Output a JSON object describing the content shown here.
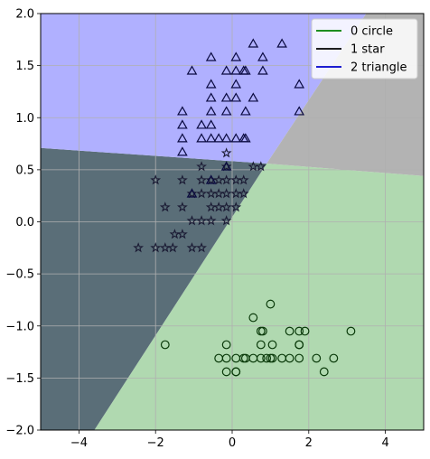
{
  "chart_data": {
    "type": "scatter",
    "xlim": [
      -5,
      5
    ],
    "ylim": [
      -2,
      2
    ],
    "x_ticks": [
      -4,
      -2,
      0,
      2,
      4
    ],
    "y_ticks": [
      -2.0,
      -1.5,
      -1.0,
      -0.5,
      0.0,
      0.5,
      1.0,
      1.5,
      2.0
    ],
    "x_tick_labels": [
      "−4",
      "−2",
      "0",
      "2",
      "4"
    ],
    "y_tick_labels": [
      "−2.0",
      "−1.5",
      "−1.0",
      "−0.5",
      "0.0",
      "0.5",
      "1.0",
      "1.5",
      "2.0"
    ],
    "grid": true,
    "legend_position": "top-right",
    "legend": [
      {
        "label": "0 circle",
        "color": "#008000"
      },
      {
        "label": "1 star",
        "color": "#000000"
      },
      {
        "label": "2 triangle",
        "color": "#0000cc"
      }
    ],
    "regions": [
      {
        "class": "0",
        "color": "#b0d9b0",
        "polygon": [
          [
            -3.6,
            -2
          ],
          [
            5,
            -2
          ],
          [
            5,
            0.44
          ],
          [
            0.9,
            0.56
          ]
        ]
      },
      {
        "class": "1",
        "color": "#5a6e78",
        "polygon": [
          [
            -5,
            -2
          ],
          [
            -3.6,
            -2
          ],
          [
            0.9,
            0.56
          ],
          [
            -5,
            0.71
          ]
        ]
      },
      {
        "class": "2",
        "color": "#b0b0ff",
        "polygon": [
          [
            -5,
            0.71
          ],
          [
            0.9,
            0.56
          ],
          [
            3.5,
            2
          ],
          [
            -5,
            2
          ]
        ]
      },
      {
        "class": "other",
        "color": "#b3b3b3",
        "polygon": [
          [
            0.9,
            0.56
          ],
          [
            5,
            0.44
          ],
          [
            5,
            2
          ],
          [
            3.5,
            2
          ]
        ]
      }
    ],
    "series": [
      {
        "name": "0 circle",
        "marker": "circle",
        "points": [
          [
            -1.75,
            -1.18
          ],
          [
            0.55,
            -0.92
          ],
          [
            1.0,
            -0.79
          ],
          [
            0.8,
            -1.05
          ],
          [
            1.5,
            -1.05
          ],
          [
            1.75,
            -1.05
          ],
          [
            1.9,
            -1.05
          ],
          [
            3.1,
            -1.05
          ],
          [
            0.75,
            -1.05
          ],
          [
            -0.15,
            -1.18
          ],
          [
            0.75,
            -1.18
          ],
          [
            1.05,
            -1.18
          ],
          [
            1.75,
            -1.18
          ],
          [
            1.75,
            -1.18
          ],
          [
            -0.35,
            -1.31
          ],
          [
            -0.15,
            -1.31
          ],
          [
            0.1,
            -1.31
          ],
          [
            0.3,
            -1.31
          ],
          [
            0.35,
            -1.31
          ],
          [
            0.55,
            -1.31
          ],
          [
            0.75,
            -1.31
          ],
          [
            0.9,
            -1.31
          ],
          [
            1.0,
            -1.31
          ],
          [
            1.05,
            -1.31
          ],
          [
            1.3,
            -1.31
          ],
          [
            1.5,
            -1.31
          ],
          [
            1.75,
            -1.31
          ],
          [
            2.2,
            -1.31
          ],
          [
            2.65,
            -1.31
          ],
          [
            -0.15,
            -1.44
          ],
          [
            0.1,
            -1.44
          ],
          [
            0.1,
            -1.44
          ],
          [
            2.4,
            -1.44
          ]
        ]
      },
      {
        "name": "1 star",
        "marker": "star",
        "points": [
          [
            -0.8,
            0.53
          ],
          [
            -0.15,
            0.53
          ],
          [
            0.55,
            0.53
          ],
          [
            0.75,
            0.53
          ],
          [
            -2.0,
            0.4
          ],
          [
            -1.3,
            0.4
          ],
          [
            -0.8,
            0.4
          ],
          [
            -0.55,
            0.4
          ],
          [
            -0.35,
            0.4
          ],
          [
            -0.15,
            0.4
          ],
          [
            0.1,
            0.4
          ],
          [
            0.3,
            0.4
          ],
          [
            -1.05,
            0.27
          ],
          [
            -0.8,
            0.27
          ],
          [
            -0.55,
            0.27
          ],
          [
            -0.35,
            0.27
          ],
          [
            -0.15,
            0.27
          ],
          [
            0.1,
            0.27
          ],
          [
            0.3,
            0.27
          ],
          [
            -1.75,
            0.14
          ],
          [
            -1.3,
            0.14
          ],
          [
            -0.55,
            0.14
          ],
          [
            -0.35,
            0.14
          ],
          [
            -0.15,
            0.14
          ],
          [
            0.1,
            0.14
          ],
          [
            -1.05,
            0.01
          ],
          [
            -0.8,
            0.01
          ],
          [
            -0.55,
            0.01
          ],
          [
            -0.15,
            0.01
          ],
          [
            -1.5,
            -0.12
          ],
          [
            -1.3,
            -0.12
          ],
          [
            -2.45,
            -0.25
          ],
          [
            -2.0,
            -0.25
          ],
          [
            -1.75,
            -0.25
          ],
          [
            -1.55,
            -0.25
          ],
          [
            -1.05,
            -0.25
          ],
          [
            -0.8,
            -0.25
          ],
          [
            -0.15,
            0.66
          ]
        ]
      },
      {
        "name": "2 triangle",
        "marker": "triangle",
        "points": [
          [
            0.55,
            1.71
          ],
          [
            1.3,
            1.71
          ],
          [
            -0.55,
            1.58
          ],
          [
            0.1,
            1.58
          ],
          [
            0.8,
            1.58
          ],
          [
            -1.05,
            1.45
          ],
          [
            -0.15,
            1.45
          ],
          [
            0.1,
            1.45
          ],
          [
            0.3,
            1.45
          ],
          [
            0.35,
            1.45
          ],
          [
            0.8,
            1.45
          ],
          [
            -0.55,
            1.32
          ],
          [
            0.1,
            1.32
          ],
          [
            1.75,
            1.32
          ],
          [
            -0.55,
            1.19
          ],
          [
            -0.15,
            1.19
          ],
          [
            0.1,
            1.19
          ],
          [
            0.55,
            1.19
          ],
          [
            -1.3,
            1.06
          ],
          [
            -0.55,
            1.06
          ],
          [
            -0.15,
            1.06
          ],
          [
            0.35,
            1.06
          ],
          [
            1.75,
            1.06
          ],
          [
            -1.3,
            0.93
          ],
          [
            -0.8,
            0.93
          ],
          [
            -0.55,
            0.93
          ],
          [
            -1.3,
            0.8
          ],
          [
            -0.8,
            0.8
          ],
          [
            -0.55,
            0.8
          ],
          [
            -0.35,
            0.8
          ],
          [
            -0.15,
            0.8
          ],
          [
            0.1,
            0.8
          ],
          [
            0.3,
            0.8
          ],
          [
            0.35,
            0.8
          ],
          [
            -1.3,
            0.67
          ],
          [
            -0.55,
            0.4
          ],
          [
            -1.05,
            0.27
          ],
          [
            -0.15,
            0.53
          ]
        ]
      }
    ]
  }
}
